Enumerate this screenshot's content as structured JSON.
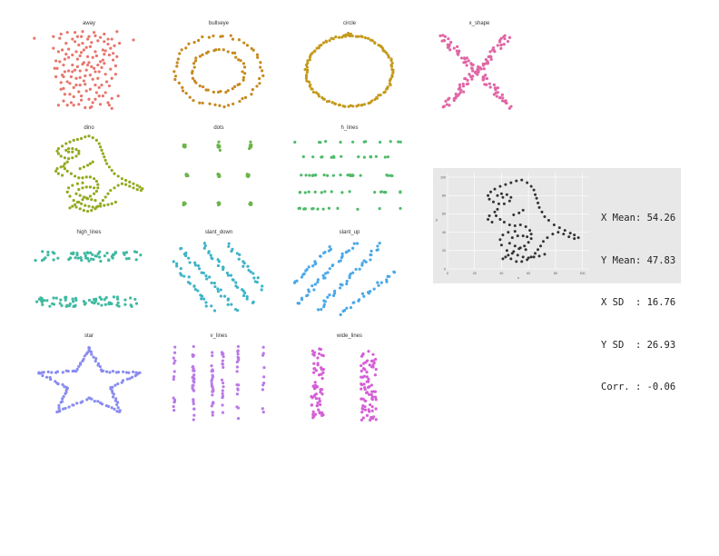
{
  "chart_data": {
    "type": "scatter",
    "panel_xlim": [
      10,
      100
    ],
    "panel_ylim": [
      0,
      100
    ],
    "panels": [
      {
        "title": "away",
        "color": "#e8756c",
        "points": [
          [
            32,
            61
          ],
          [
            53,
            26
          ],
          [
            63,
            30
          ],
          [
            70,
            82
          ],
          [
            34,
            45
          ],
          [
            68,
            74
          ],
          [
            38,
            96
          ],
          [
            64,
            10
          ],
          [
            49,
            15
          ],
          [
            34,
            75
          ],
          [
            30,
            53
          ],
          [
            48,
            50
          ],
          [
            55,
            16
          ],
          [
            71,
            32
          ],
          [
            75,
            80
          ],
          [
            49,
            72
          ],
          [
            57,
            7
          ],
          [
            42,
            88
          ],
          [
            74,
            63
          ],
          [
            35,
            43
          ],
          [
            56,
            28
          ],
          [
            59,
            96
          ],
          [
            46,
            55
          ],
          [
            58,
            66
          ],
          [
            44,
            85
          ],
          [
            68,
            46
          ],
          [
            54,
            67
          ],
          [
            36,
            22
          ],
          [
            59,
            53
          ],
          [
            41,
            43
          ],
          [
            71,
            9
          ],
          [
            77,
            97
          ],
          [
            42,
            69
          ],
          [
            60,
            49
          ],
          [
            33,
            94
          ],
          [
            52,
            6
          ],
          [
            66,
            75
          ],
          [
            27,
            77
          ],
          [
            65,
            33
          ],
          [
            45,
            73
          ],
          [
            65,
            54
          ],
          [
            70,
            12
          ],
          [
            42,
            57
          ],
          [
            55,
            60
          ],
          [
            61,
            68
          ],
          [
            35,
            29
          ],
          [
            76,
            56
          ],
          [
            38,
            37
          ],
          [
            64,
            90
          ],
          [
            50,
            97
          ],
          [
            37,
            83
          ],
          [
            62,
            41
          ],
          [
            56,
            45
          ],
          [
            72,
            52
          ],
          [
            44,
            51
          ],
          [
            31,
            9
          ],
          [
            67,
            70
          ],
          [
            47,
            25
          ],
          [
            66,
            20
          ],
          [
            43,
            30
          ],
          [
            47,
            81
          ],
          [
            43,
            19
          ],
          [
            78,
            20
          ],
          [
            55,
            91
          ],
          [
            52,
            34
          ],
          [
            45,
            41
          ],
          [
            61,
            24
          ],
          [
            57,
            84
          ],
          [
            68,
            24
          ],
          [
            32,
            89
          ],
          [
            40,
            22
          ],
          [
            77,
            67
          ],
          [
            67,
            94
          ],
          [
            41,
            12
          ],
          [
            73,
            41
          ],
          [
            50,
            83
          ],
          [
            35,
            57
          ],
          [
            50,
            58
          ],
          [
            58,
            40
          ],
          [
            39,
            66
          ],
          [
            48,
            42
          ],
          [
            29,
            62
          ],
          [
            73,
            88
          ],
          [
            51,
            38
          ],
          [
            39,
            50
          ],
          [
            62,
            57
          ],
          [
            67,
            59
          ],
          [
            74,
            71
          ],
          [
            53,
            51
          ],
          [
            49,
            91
          ],
          [
            56,
            6
          ],
          [
            44,
            96
          ],
          [
            33,
            28
          ],
          [
            53,
            78
          ],
          [
            67,
            85
          ],
          [
            36,
            64
          ],
          [
            60,
            33
          ],
          [
            73,
            5
          ],
          [
            46,
            91
          ],
          [
            38,
            9
          ],
          [
            27,
            91
          ],
          [
            48,
            33
          ],
          [
            71,
            69
          ],
          [
            43,
            9
          ],
          [
            62,
            86
          ],
          [
            56,
            79
          ],
          [
            63,
            20
          ],
          [
            57,
            55
          ],
          [
            60,
            73
          ],
          [
            36,
            49
          ],
          [
            46,
            64
          ],
          [
            52,
            44
          ],
          [
            54,
            88
          ],
          [
            40,
            35
          ],
          [
            69,
            37
          ],
          [
            29,
            43
          ],
          [
            39,
            76
          ],
          [
            73,
            17
          ],
          [
            66,
            63
          ],
          [
            31,
            73
          ],
          [
            58,
            12
          ],
          [
            48,
            68
          ],
          [
            51,
            60
          ],
          [
            70,
            88
          ],
          [
            35,
            14
          ],
          [
            42,
            49
          ],
          [
            64,
            61
          ],
          [
            49,
            20
          ],
          [
            79,
            83
          ],
          [
            45,
            33
          ],
          [
            28,
            53
          ],
          [
            60,
            92
          ],
          [
            33,
            36
          ],
          [
            60,
            16
          ],
          [
            72,
            77
          ],
          [
            51,
            75
          ],
          [
            76,
            46
          ],
          [
            47,
            10
          ],
          [
            37,
            70
          ],
          [
            63,
            49
          ],
          [
            54,
            57
          ],
          [
            90,
            87
          ],
          [
            12,
            89
          ]
        ]
      },
      {
        "title": "bullseye",
        "color": "#c6891e",
        "points": []
      },
      {
        "title": "circle",
        "color": "#c49a1c",
        "points": []
      },
      {
        "title": "x_shape",
        "color": "#e066a6",
        "points": []
      },
      {
        "title": "dino",
        "color": "#93aa1e",
        "points": []
      },
      {
        "title": "dots",
        "color": "#6bb54a",
        "points": []
      },
      {
        "title": "h_lines",
        "color": "#4fbb6a",
        "points": []
      },
      {
        "title": "high_lines",
        "color": "#3fb9a0",
        "points": []
      },
      {
        "title": "slant_down",
        "color": "#3eb4c8",
        "points": []
      },
      {
        "title": "slant_up",
        "color": "#4aa8e8",
        "points": []
      },
      {
        "title": "star",
        "color": "#8a8cf0",
        "points": []
      },
      {
        "title": "v_lines",
        "color": "#b97ae8",
        "points": []
      },
      {
        "title": "wide_lines",
        "color": "#d55fd6",
        "points": []
      }
    ],
    "feature": {
      "title": "",
      "xlabel": "x",
      "ylabel": "y",
      "xticks": [
        0,
        20,
        40,
        60,
        80,
        100
      ],
      "yticks": [
        0,
        20,
        40,
        60,
        80,
        100
      ],
      "xlim": [
        0,
        105
      ],
      "ylim": [
        0,
        105
      ],
      "color": "#333333",
      "background": "#e8e8e8"
    },
    "stats": [
      {
        "label": "X Mean",
        "value": "54.26"
      },
      {
        "label": "Y Mean",
        "value": "47.83"
      },
      {
        "label": "X SD  ",
        "value": "16.76"
      },
      {
        "label": "Y SD  ",
        "value": "26.93"
      },
      {
        "label": "Corr. ",
        "value": "-0.06"
      }
    ]
  }
}
